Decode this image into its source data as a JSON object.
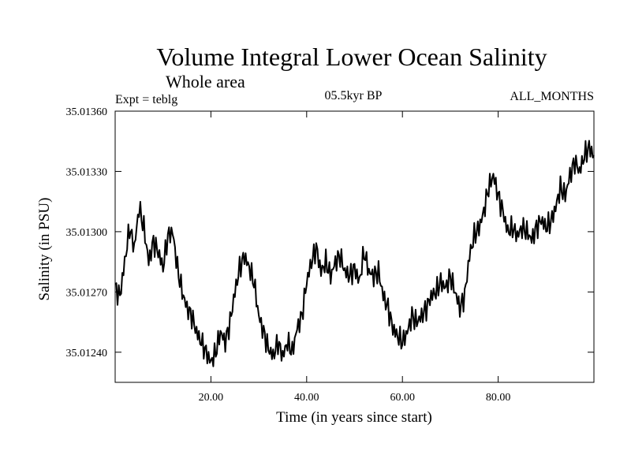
{
  "chart_data": {
    "type": "line",
    "title": "Volume Integral Lower Ocean Salinity",
    "subtitle": "Whole area",
    "experiment": "Expt = teblg",
    "period": "05.5kyr BP",
    "months": "ALL_MONTHS",
    "xlabel": "Time (in years since start)",
    "ylabel": "Salinity (in PSU)",
    "xlim": [
      0,
      100
    ],
    "ylim": [
      35.01225,
      35.0136
    ],
    "xticks": [
      20,
      40,
      60,
      80
    ],
    "xtick_labels": [
      "20.00",
      "40.00",
      "60.00",
      "80.00"
    ],
    "yticks": [
      35.0124,
      35.0127,
      35.013,
      35.0133,
      35.0136
    ],
    "ytick_labels": [
      "35.01240",
      "35.01270",
      "35.01300",
      "35.01330",
      "35.01360"
    ],
    "grid": false,
    "series": [
      {
        "name": "salinity",
        "x": [
          0,
          1,
          2,
          3,
          4,
          5,
          6,
          7,
          8,
          9,
          10,
          11,
          12,
          13,
          14,
          15,
          16,
          17,
          18,
          19,
          20,
          21,
          22,
          23,
          24,
          25,
          26,
          27,
          28,
          29,
          30,
          31,
          32,
          33,
          34,
          35,
          36,
          37,
          38,
          39,
          40,
          41,
          42,
          43,
          44,
          45,
          46,
          47,
          48,
          49,
          50,
          51,
          52,
          53,
          54,
          55,
          56,
          57,
          58,
          59,
          60,
          61,
          62,
          63,
          64,
          65,
          66,
          67,
          68,
          69,
          70,
          71,
          72,
          73,
          74,
          75,
          76,
          77,
          78,
          79,
          80,
          81,
          82,
          83,
          84,
          85,
          86,
          87,
          88,
          89,
          90,
          91,
          92,
          93,
          94,
          95,
          96,
          97,
          98,
          99,
          100
        ],
        "values": [
          35.01272,
          35.01268,
          35.01285,
          35.01302,
          35.01292,
          35.01312,
          35.01302,
          35.01285,
          35.01295,
          35.0129,
          35.01282,
          35.01298,
          35.013,
          35.01282,
          35.0127,
          35.01262,
          35.01258,
          35.0125,
          35.01245,
          35.0124,
          35.01235,
          35.0124,
          35.0125,
          35.01245,
          35.01255,
          35.0127,
          35.01282,
          35.01288,
          35.01282,
          35.01275,
          35.01258,
          35.0125,
          35.01242,
          35.01238,
          35.01245,
          35.01238,
          35.01245,
          35.0124,
          35.01252,
          35.01258,
          35.01275,
          35.01285,
          35.01292,
          35.0128,
          35.01285,
          35.01278,
          35.01285,
          35.01288,
          35.0128,
          35.01278,
          35.01282,
          35.01275,
          35.0129,
          35.0128,
          35.01278,
          35.0128,
          35.01268,
          35.01262,
          35.01252,
          35.01248,
          35.01245,
          35.0125,
          35.01258,
          35.01255,
          35.01258,
          35.01262,
          35.01268,
          35.0127,
          35.01275,
          35.01272,
          35.01278,
          35.0127,
          35.01262,
          35.01268,
          35.01288,
          35.01298,
          35.01302,
          35.0131,
          35.01322,
          35.01328,
          35.01318,
          35.0131,
          35.013,
          35.01302,
          35.01298,
          35.01302,
          35.013,
          35.01296,
          35.01302,
          35.01306,
          35.01302,
          35.01305,
          35.01312,
          35.01322,
          35.01318,
          35.01328,
          35.01335,
          35.0133,
          35.01338,
          35.01342,
          35.01338
        ]
      }
    ]
  }
}
